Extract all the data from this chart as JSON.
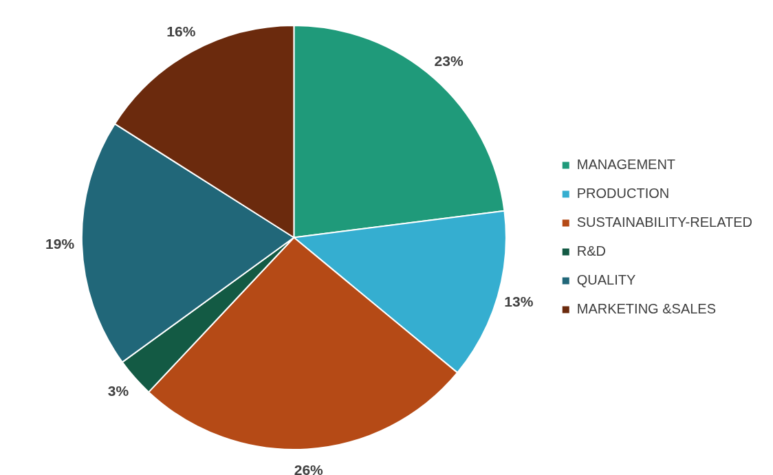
{
  "chart_data": {
    "type": "pie",
    "categories": [
      "MANAGEMENT",
      "PRODUCTION",
      "SUSTAINABILITY-RELATED",
      "R&D",
      "QUALITY",
      "MARKETING &SALES"
    ],
    "values": [
      23,
      13,
      26,
      3,
      19,
      16
    ],
    "colors": [
      "#1f9a7a",
      "#35aed0",
      "#b54a16",
      "#135a44",
      "#216779",
      "#6b2a0d"
    ],
    "value_labels": [
      "23%",
      "13%",
      "26%",
      "3%",
      "19%",
      "16%"
    ],
    "legend": "right"
  }
}
